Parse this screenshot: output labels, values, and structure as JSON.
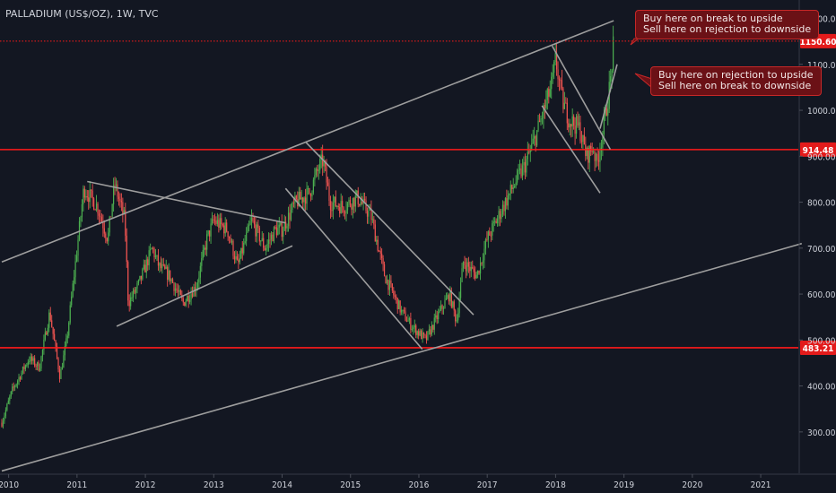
{
  "chart_data": {
    "type": "candlestick",
    "title": "PALLADIUM (US$/OZ), 1W, TVC",
    "x_tick_labels": [
      "2010",
      "2011",
      "2012",
      "2013",
      "2014",
      "2015",
      "2016",
      "2017",
      "2018",
      "2019",
      "2020",
      "2021"
    ],
    "y_tick_labels": [
      "1200.00",
      "1100.00",
      "1000.00",
      "900.00",
      "800.00",
      "700.00",
      "600.00",
      "500.00",
      "400.00",
      "300.00"
    ],
    "ylim": [
      210,
      1240
    ],
    "horizontal_levels": [
      {
        "label": "1150.60",
        "value": 1150.6,
        "style": "dotted"
      },
      {
        "label": "914.48",
        "value": 914.48,
        "style": "solid"
      },
      {
        "label": "483.21",
        "value": 483.21,
        "style": "solid"
      }
    ],
    "price_path": [
      [
        2009.9,
        320
      ],
      [
        2010.05,
        390
      ],
      [
        2010.3,
        460
      ],
      [
        2010.45,
        440
      ],
      [
        2010.6,
        560
      ],
      [
        2010.75,
        420
      ],
      [
        2010.85,
        500
      ],
      [
        2011.1,
        830
      ],
      [
        2011.3,
        790
      ],
      [
        2011.45,
        720
      ],
      [
        2011.55,
        840
      ],
      [
        2011.7,
        760
      ],
      [
        2011.75,
        580
      ],
      [
        2011.9,
        620
      ],
      [
        2012.1,
        700
      ],
      [
        2012.2,
        660
      ],
      [
        2012.35,
        640
      ],
      [
        2012.55,
        580
      ],
      [
        2012.75,
        620
      ],
      [
        2012.9,
        720
      ],
      [
        2013.0,
        760
      ],
      [
        2013.2,
        740
      ],
      [
        2013.35,
        660
      ],
      [
        2013.55,
        760
      ],
      [
        2013.75,
        700
      ],
      [
        2013.9,
        740
      ],
      [
        2014.0,
        740
      ],
      [
        2014.2,
        800
      ],
      [
        2014.4,
        820
      ],
      [
        2014.55,
        880
      ],
      [
        2014.6,
        890
      ],
      [
        2014.7,
        800
      ],
      [
        2014.9,
        790
      ],
      [
        2015.1,
        810
      ],
      [
        2015.3,
        770
      ],
      [
        2015.5,
        640
      ],
      [
        2015.75,
        560
      ],
      [
        2015.9,
        530
      ],
      [
        2016.1,
        500
      ],
      [
        2016.3,
        560
      ],
      [
        2016.45,
        600
      ],
      [
        2016.55,
        540
      ],
      [
        2016.65,
        670
      ],
      [
        2016.85,
        640
      ],
      [
        2017.0,
        720
      ],
      [
        2017.2,
        780
      ],
      [
        2017.4,
        840
      ],
      [
        2017.55,
        880
      ],
      [
        2017.7,
        940
      ],
      [
        2017.85,
        1010
      ],
      [
        2017.95,
        1060
      ],
      [
        2018.0,
        1110
      ],
      [
        2018.1,
        1020
      ],
      [
        2018.2,
        980
      ],
      [
        2018.35,
        960
      ],
      [
        2018.45,
        900
      ],
      [
        2018.55,
        920
      ],
      [
        2018.6,
        880
      ],
      [
        2018.7,
        960
      ],
      [
        2018.8,
        1060
      ],
      [
        2018.85,
        1150
      ]
    ],
    "trendlines": [
      {
        "from": [
          2009.9,
          670
        ],
        "to": [
          2018.85,
          1195
        ]
      },
      {
        "from": [
          2009.9,
          215
        ],
        "to": [
          2021.6,
          710
        ]
      },
      {
        "from": [
          2011.15,
          845
        ],
        "to": [
          2014.05,
          755
        ]
      },
      {
        "from": [
          2011.58,
          530
        ],
        "to": [
          2014.15,
          705
        ]
      },
      {
        "from": [
          2014.35,
          930
        ],
        "to": [
          2016.8,
          555
        ]
      },
      {
        "from": [
          2014.05,
          830
        ],
        "to": [
          2016.05,
          480
        ]
      },
      {
        "from": [
          2017.95,
          1140
        ],
        "to": [
          2018.8,
          915
        ]
      },
      {
        "from": [
          2017.8,
          1010
        ],
        "to": [
          2018.65,
          820
        ]
      },
      {
        "from": [
          2018.65,
          960
        ],
        "to": [
          2018.9,
          1100
        ]
      }
    ],
    "annotations": [
      {
        "line1": "Buy here on break to upside",
        "line2": "Sell here on rejection to downside"
      },
      {
        "line1": "Buy here on rejection to upside",
        "line2": "Sell here on break to downside"
      }
    ]
  },
  "colors": {
    "background": "#131722",
    "up": "#4caf50",
    "down": "#ef5350",
    "level": "#ff1a1a",
    "trend": "#9e9e9e",
    "axis_text": "#d1d4dc"
  }
}
